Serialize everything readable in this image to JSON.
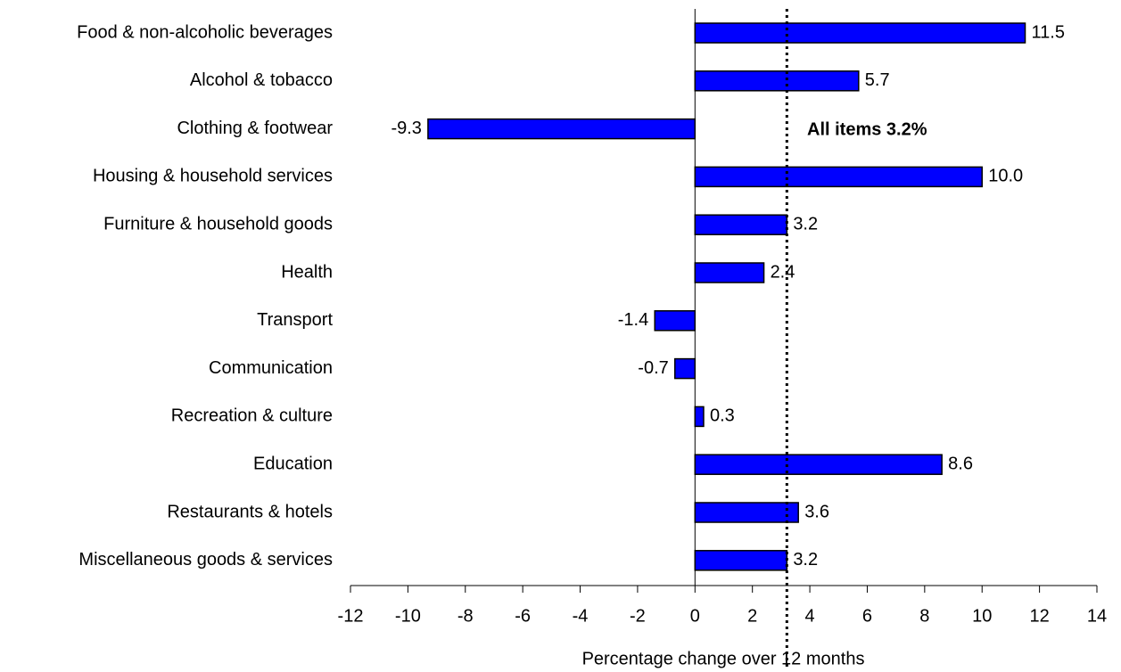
{
  "chart_data": {
    "type": "barh",
    "categories": [
      "Food & non-alcoholic beverages",
      "Alcohol & tobacco",
      "Clothing & footwear",
      "Housing & household services",
      "Furniture & household goods",
      "Health",
      "Transport",
      "Communication",
      "Recreation & culture",
      "Education",
      "Restaurants & hotels",
      "Miscellaneous goods & services"
    ],
    "values": [
      11.5,
      5.7,
      -9.3,
      10,
      3.2,
      2.4,
      -1.4,
      -0.7,
      0.3,
      8.6,
      3.6,
      3.2
    ],
    "value_labels": [
      "11.5",
      "5.7",
      "-9.3",
      "10.0",
      "3.2",
      "2.4",
      "-1.4",
      "-0.7",
      "0.3",
      "8.6",
      "3.6",
      "3.2"
    ],
    "color": "#0000ff",
    "xlabel": "Percentage change over 12 months",
    "xlim": [
      -12,
      14
    ],
    "xticks": [
      -12,
      -10,
      -8,
      -6,
      -4,
      -2,
      0,
      2,
      4,
      6,
      8,
      10,
      12,
      14
    ],
    "reference_line": {
      "value": 3.2,
      "label": "All items 3.2%"
    }
  }
}
